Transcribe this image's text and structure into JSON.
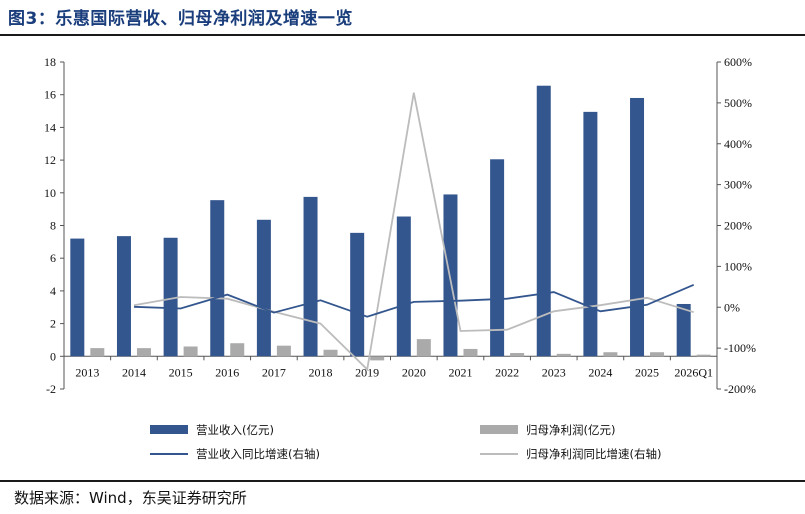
{
  "title": "图3：乐惠国际营收、归母净利润及增速一览",
  "source": "数据来源：Wind，东吴证券研究所",
  "colors": {
    "revenue": "#34568e",
    "profit": "#aaaaaa",
    "revenue_growth": "#34568e",
    "profit_growth": "#bcbcbc"
  },
  "chart_data": {
    "type": "bar",
    "categories": [
      "2013",
      "2014",
      "2015",
      "2016",
      "2017",
      "2018",
      "2019",
      "2020",
      "2021",
      "2022",
      "2023",
      "2024",
      "2025",
      "2026Q1"
    ],
    "left_axis": {
      "min": -2,
      "max": 18,
      "step": 2,
      "ticks": [
        "-2",
        "0",
        "2",
        "4",
        "6",
        "8",
        "10",
        "12",
        "14",
        "16",
        "18"
      ]
    },
    "right_axis": {
      "min": -200,
      "max": 600,
      "step": 100,
      "ticks": [
        "-200%",
        "-100%",
        "0%",
        "100%",
        "200%",
        "300%",
        "400%",
        "500%",
        "600%"
      ]
    },
    "series": [
      {
        "name": "营业收入(亿元)",
        "type": "bar",
        "axis": "left",
        "values": [
          7.2,
          7.35,
          7.25,
          9.55,
          8.35,
          9.75,
          7.55,
          8.55,
          9.9,
          12.05,
          16.55,
          14.95,
          15.8,
          3.2
        ]
      },
      {
        "name": "归母净利润(亿元)",
        "type": "bar",
        "axis": "left",
        "values": [
          0.5,
          0.5,
          0.6,
          0.8,
          0.65,
          0.4,
          -0.25,
          1.05,
          0.45,
          0.2,
          0.15,
          0.25,
          0.25,
          0.1
        ]
      },
      {
        "name": "营业收入同比增速(右轴)",
        "type": "line",
        "axis": "right",
        "values": [
          null,
          1,
          -3,
          31,
          -13,
          17,
          -23,
          13,
          16,
          21,
          37,
          -10,
          6,
          55
        ]
      },
      {
        "name": "归母净利润同比增速(右轴)",
        "type": "line",
        "axis": "right",
        "values": [
          null,
          5,
          25,
          21,
          -11,
          -40,
          -152,
          525,
          -58,
          -55,
          -10,
          5,
          23,
          -12
        ]
      }
    ]
  }
}
